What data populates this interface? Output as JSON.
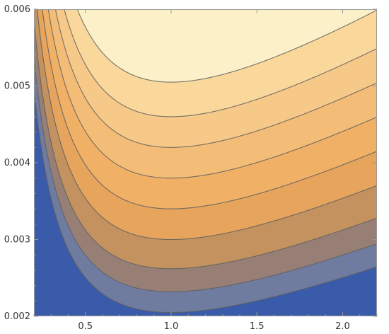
{
  "chart_data": {
    "type": "contour",
    "title": "",
    "xlabel": "",
    "ylabel": "",
    "xlim": [
      0.2,
      2.2
    ],
    "ylim": [
      0.002,
      0.006
    ],
    "x_ticks": [
      0.5,
      1.0,
      1.5,
      2.0
    ],
    "x_tick_labels": [
      "0.5",
      "1.0",
      "1.5",
      "2.0"
    ],
    "y_ticks": [
      0.002,
      0.003,
      0.004,
      0.005,
      0.006
    ],
    "y_tick_labels": [
      "0.002",
      "0.003",
      "0.004",
      "0.005",
      "0.006"
    ],
    "colorscheme": "blue-to-orange-to-cream",
    "minimum_location": {
      "x": 1.0
    },
    "contour_lines": [
      {
        "level": 1,
        "y_at_min": 0.00205,
        "color": "#6F7CA0"
      },
      {
        "level": 2,
        "y_at_min": 0.00232,
        "color": "#987F76"
      },
      {
        "level": 3,
        "y_at_min": 0.00262,
        "color": "#C4925F"
      },
      {
        "level": 4,
        "y_at_min": 0.003,
        "color": "#E6A45D"
      },
      {
        "level": 5,
        "y_at_min": 0.0034,
        "color": "#F0B167"
      },
      {
        "level": 6,
        "y_at_min": 0.0038,
        "color": "#F4BD77"
      },
      {
        "level": 7,
        "y_at_min": 0.0042,
        "color": "#F7C988"
      },
      {
        "level": 8,
        "y_at_min": 0.0046,
        "color": "#FAD89C"
      },
      {
        "level": 9,
        "y_at_min": 0.00505,
        "color": "#FCF0C9"
      }
    ],
    "base_color": "#3A5BAA",
    "grid": false,
    "legend": "none"
  }
}
